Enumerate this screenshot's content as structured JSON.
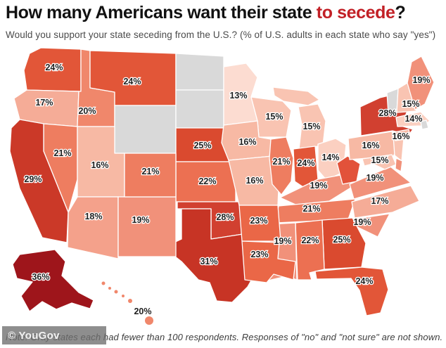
{
  "header": {
    "title_prefix": "How many Americans want their state ",
    "title_highlight": "to secede",
    "title_suffix": "?",
    "subtitle": "Would you support your state seceding from the U.S.? (% of U.S. adults in each state who say \"yes\")"
  },
  "footer": {
    "note": "Note: Gray states each had fewer than 100 respondents. Responses of \"no\" and \"not sure\" are not shown.",
    "watermark": "© YouGov"
  },
  "colors": {
    "accent_red": "#c22026",
    "title_text": "#111111",
    "subtitle_text": "#4a4a4a",
    "no_data_gray": "#d9d9d9",
    "state_border": "#ffffff",
    "label_text": "#1f1f1f",
    "scale": {
      "13": "#fcdcd1",
      "14": "#fbd0c1",
      "15": "#f9c4b2",
      "16": "#f7b9a4",
      "17": "#f5ac97",
      "18": "#f4a18b",
      "19": "#f1917a",
      "20": "#f0876b",
      "21": "#ee7d60",
      "22": "#ec7052",
      "23": "#ea6747",
      "24": "#e25638",
      "25": "#da4a2f",
      "28": "#d14030",
      "29": "#cb3928",
      "31": "#c73425",
      "36": "#9e151b"
    }
  },
  "chart_data": {
    "type": "choropleth_map",
    "region": "United States",
    "title": "How many Americans want their state to secede?",
    "metric": "% of U.S. adults in each state who say \"yes\" to supporting their state seceding from the U.S.",
    "legend": "none (values labeled directly on states)",
    "no_data_states": [
      "Wyoming",
      "North Dakota",
      "South Dakota",
      "Vermont",
      "Rhode Island"
    ],
    "states": [
      {
        "abbr": "WA",
        "name": "Washington",
        "value": 24,
        "label": "24%"
      },
      {
        "abbr": "OR",
        "name": "Oregon",
        "value": 17,
        "label": "17%"
      },
      {
        "abbr": "CA",
        "name": "California",
        "value": 29,
        "label": "29%"
      },
      {
        "abbr": "ID",
        "name": "Idaho",
        "value": 20,
        "label": "20%"
      },
      {
        "abbr": "NV",
        "name": "Nevada",
        "value": 21,
        "label": "21%"
      },
      {
        "abbr": "UT",
        "name": "Utah",
        "value": 16,
        "label": "16%"
      },
      {
        "abbr": "AZ",
        "name": "Arizona",
        "value": 18,
        "label": "18%"
      },
      {
        "abbr": "MT",
        "name": "Montana",
        "value": 24,
        "label": "24%"
      },
      {
        "abbr": "WY",
        "name": "Wyoming",
        "value": null,
        "label": "",
        "no_data": true
      },
      {
        "abbr": "CO",
        "name": "Colorado",
        "value": 21,
        "label": "21%"
      },
      {
        "abbr": "NM",
        "name": "New Mexico",
        "value": 19,
        "label": "19%"
      },
      {
        "abbr": "ND",
        "name": "North Dakota",
        "value": null,
        "label": "",
        "no_data": true
      },
      {
        "abbr": "SD",
        "name": "South Dakota",
        "value": null,
        "label": "",
        "no_data": true
      },
      {
        "abbr": "NE",
        "name": "Nebraska",
        "value": 25,
        "label": "25%"
      },
      {
        "abbr": "KS",
        "name": "Kansas",
        "value": 22,
        "label": "22%"
      },
      {
        "abbr": "OK",
        "name": "Oklahoma",
        "value": 28,
        "label": "28%"
      },
      {
        "abbr": "TX",
        "name": "Texas",
        "value": 31,
        "label": "31%"
      },
      {
        "abbr": "MN",
        "name": "Minnesota",
        "value": 13,
        "label": "13%"
      },
      {
        "abbr": "IA",
        "name": "Iowa",
        "value": 16,
        "label": "16%"
      },
      {
        "abbr": "MO",
        "name": "Missouri",
        "value": 16,
        "label": "16%"
      },
      {
        "abbr": "AR",
        "name": "Arkansas",
        "value": 23,
        "label": "23%"
      },
      {
        "abbr": "LA",
        "name": "Louisiana",
        "value": 23,
        "label": "23%"
      },
      {
        "abbr": "WI",
        "name": "Wisconsin",
        "value": 15,
        "label": "15%"
      },
      {
        "abbr": "IL",
        "name": "Illinois",
        "value": 21,
        "label": "21%"
      },
      {
        "abbr": "MI",
        "name": "Michigan",
        "value": 15,
        "label": "15%"
      },
      {
        "abbr": "IN",
        "name": "Indiana",
        "value": 24,
        "label": "24%"
      },
      {
        "abbr": "OH",
        "name": "Ohio",
        "value": 14,
        "label": "14%"
      },
      {
        "abbr": "KY",
        "name": "Kentucky",
        "value": 19,
        "label": "19%"
      },
      {
        "abbr": "TN",
        "name": "Tennessee",
        "value": 21,
        "label": "21%"
      },
      {
        "abbr": "MS",
        "name": "Mississippi",
        "value": 19,
        "label": "19%"
      },
      {
        "abbr": "AL",
        "name": "Alabama",
        "value": 22,
        "label": "22%"
      },
      {
        "abbr": "GA",
        "name": "Georgia",
        "value": 25,
        "label": "25%"
      },
      {
        "abbr": "FL",
        "name": "Florida",
        "value": 24,
        "label": "24%"
      },
      {
        "abbr": "SC",
        "name": "South Carolina",
        "value": 19,
        "label": "19%"
      },
      {
        "abbr": "NC",
        "name": "North Carolina",
        "value": 17,
        "label": "17%"
      },
      {
        "abbr": "VA",
        "name": "Virginia",
        "value": 19,
        "label": "19%"
      },
      {
        "abbr": "WV",
        "name": "West Virginia",
        "value": null,
        "label": "",
        "fill": "#e2523a"
      },
      {
        "abbr": "PA",
        "name": "Pennsylvania",
        "value": 16,
        "label": "16%"
      },
      {
        "abbr": "NY",
        "name": "New York",
        "value": 28,
        "label": "28%"
      },
      {
        "abbr": "NJ",
        "name": "New Jersey",
        "value": null,
        "label": "",
        "fill": "#f9c4b2"
      },
      {
        "abbr": "MD",
        "name": "Maryland",
        "value": 15,
        "label": "15%"
      },
      {
        "abbr": "DE",
        "name": "Delaware",
        "value": null,
        "label": "",
        "fill": "#f1917a"
      },
      {
        "abbr": "CT",
        "name": "Connecticut",
        "value": 16,
        "label": "16%"
      },
      {
        "abbr": "MA",
        "name": "Massachusetts",
        "value": 14,
        "label": "14%"
      },
      {
        "abbr": "RI",
        "name": "Rhode Island",
        "value": null,
        "label": "",
        "no_data": true
      },
      {
        "abbr": "VT",
        "name": "Vermont",
        "value": null,
        "label": "",
        "no_data": true
      },
      {
        "abbr": "NH",
        "name": "New Hampshire",
        "value": 15,
        "label": "15%"
      },
      {
        "abbr": "ME",
        "name": "Maine",
        "value": 19,
        "label": "19%"
      },
      {
        "abbr": "AK",
        "name": "Alaska",
        "value": 36,
        "label": "36%"
      },
      {
        "abbr": "HI",
        "name": "Hawaii",
        "value": 20,
        "label": "20%"
      }
    ]
  }
}
